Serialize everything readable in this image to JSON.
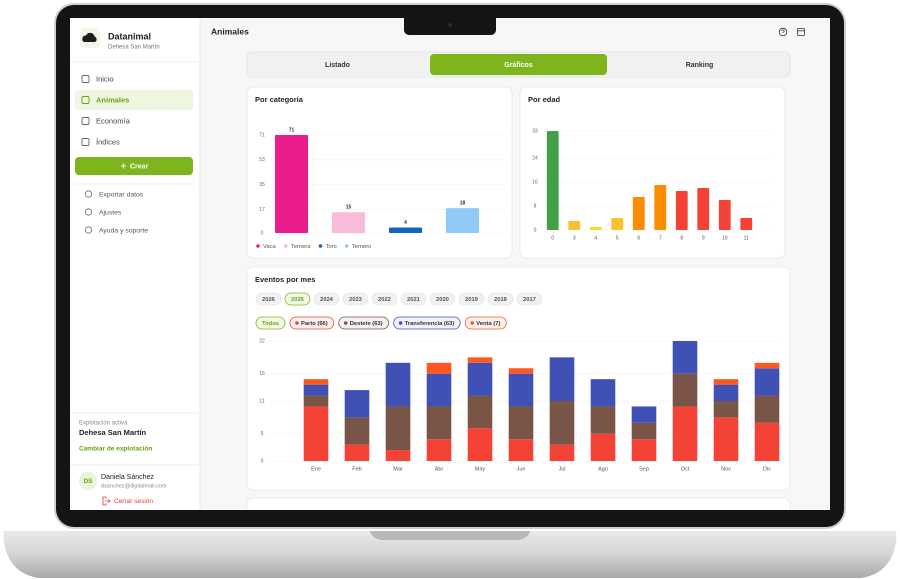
{
  "app": {
    "name": "Datanimal",
    "farm": "Dehesa San Martín"
  },
  "nav": [
    "Inicio",
    "Animales",
    "Economía",
    "Índices"
  ],
  "active_nav": 1,
  "create_button": "Crear",
  "secondary_nav": [
    "Exportar datos",
    "Ajustes",
    "Ayuda y soporte"
  ],
  "active_farm": {
    "label": "Explotación activa",
    "name": "Dehesa San Martín",
    "change": "Cambiar de explotación"
  },
  "user": {
    "initials": "DS",
    "name": "Daniela Sánchez",
    "email": "dsanchez@digitalmail.com",
    "logout": "Cerrar sesión"
  },
  "header": {
    "title": "Animales"
  },
  "tabs": [
    "Listado",
    "Gráficos",
    "Ranking"
  ],
  "active_tab": 1,
  "chart_data": [
    {
      "type": "bar",
      "title": "Por categoría",
      "categories": [
        "Vaca",
        "Ternera",
        "Toro",
        "Ternero"
      ],
      "values": [
        71,
        15,
        4,
        18
      ],
      "colors": [
        "#e91e8c",
        "#f8bbd9",
        "#1565c0",
        "#90caf9"
      ],
      "ylim": [
        0,
        71
      ],
      "yticks": [
        0,
        17,
        35,
        53,
        71
      ],
      "grid": true,
      "data_labels": true,
      "legend": "bottom"
    },
    {
      "type": "bar",
      "title": "Por edad",
      "categories": [
        "0",
        "3",
        "4",
        "5",
        "6",
        "7",
        "8",
        "9",
        "10",
        "11"
      ],
      "values": [
        33,
        3,
        1,
        4,
        11,
        15,
        13,
        14,
        10,
        4
      ],
      "colors": [
        "#43a047",
        "#fbc02d",
        "#fdd835",
        "#fbc02d",
        "#fb8c00",
        "#fb8c00",
        "#f44336",
        "#f44336",
        "#f44336",
        "#f44336"
      ],
      "ylim": [
        0,
        33
      ],
      "yticks": [
        0,
        8,
        16,
        24,
        33
      ],
      "grid": true
    },
    {
      "type": "bar",
      "stacked": true,
      "title": "Eventos por mes",
      "years": [
        "2026",
        "2025",
        "2024",
        "2023",
        "2022",
        "2021",
        "2020",
        "2019",
        "2018",
        "2017"
      ],
      "selected_year": 1,
      "filter_all": "Todos",
      "categories": [
        "Ene",
        "Feb",
        "Mar",
        "Abr",
        "May",
        "Jun",
        "Jul",
        "Ago",
        "Sep",
        "Oct",
        "Nov",
        "Dic"
      ],
      "series": [
        {
          "name": "Parto (66)",
          "color": "#f44336",
          "values": [
            10,
            3,
            2,
            4,
            6,
            4,
            3,
            5,
            4,
            10,
            8,
            7
          ]
        },
        {
          "name": "Destete (63)",
          "color": "#795548",
          "values": [
            2,
            5,
            8,
            6,
            6,
            6,
            8,
            5,
            3,
            6,
            3,
            5
          ]
        },
        {
          "name": "Transferencia (63)",
          "color": "#3f51b5",
          "values": [
            2,
            5,
            8,
            6,
            6,
            6,
            8,
            5,
            3,
            6,
            3,
            5
          ]
        },
        {
          "name": "Venta (7)",
          "color": "#ff5722",
          "values": [
            1,
            0,
            0,
            2,
            1,
            1,
            0,
            0,
            0,
            0,
            1,
            1
          ]
        }
      ],
      "ylim": [
        0,
        22
      ],
      "yticks": [
        0,
        5,
        11,
        16,
        22
      ],
      "grid": true
    }
  ]
}
